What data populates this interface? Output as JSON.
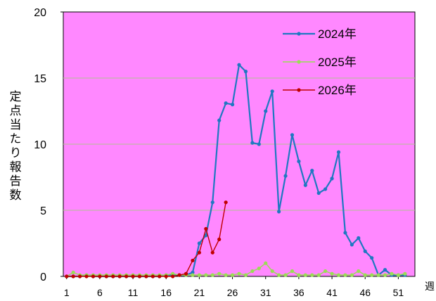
{
  "chart_data": {
    "type": "line",
    "y_label": "定点当たり報告数",
    "x_label": "週",
    "x": [
      1,
      2,
      3,
      4,
      5,
      6,
      7,
      8,
      9,
      10,
      11,
      12,
      13,
      14,
      15,
      16,
      17,
      18,
      19,
      20,
      21,
      22,
      23,
      24,
      25,
      26,
      27,
      28,
      29,
      30,
      31,
      32,
      33,
      34,
      35,
      36,
      37,
      38,
      39,
      40,
      41,
      42,
      43,
      44,
      45,
      46,
      47,
      48,
      49,
      50,
      51,
      52
    ],
    "series": [
      {
        "name": "2024年",
        "color": "#1f78c1",
        "values": [
          0,
          0,
          0,
          0.1,
          0,
          0,
          0,
          0,
          0,
          0,
          0,
          0,
          0,
          0,
          0,
          0.1,
          0.1,
          0.1,
          0.1,
          0.3,
          2.5,
          3.1,
          5.6,
          11.8,
          13.1,
          13.0,
          16.0,
          15.5,
          10.1,
          10.0,
          12.5,
          14.0,
          4.9,
          7.6,
          10.7,
          8.7,
          6.9,
          8.0,
          6.3,
          6.6,
          7.4,
          9.4,
          3.3,
          2.4,
          2.9,
          1.9,
          1.4,
          0.1,
          0.5,
          0.1,
          0.1,
          0.1
        ]
      },
      {
        "name": "2025年",
        "color": "#99dd55",
        "values": [
          0,
          0.3,
          0.1,
          0.1,
          0.1,
          0.1,
          0.1,
          0.1,
          0.1,
          0.1,
          0.1,
          0.1,
          0.1,
          0.1,
          0.1,
          0.1,
          0.2,
          0.1,
          0.1,
          0.1,
          0.1,
          0.1,
          0.1,
          0.2,
          0.1,
          0.1,
          0.2,
          0.1,
          0.4,
          0.6,
          1.0,
          0.4,
          0.1,
          0.1,
          0.4,
          0.1,
          0.1,
          0.1,
          0.1,
          0.4,
          0.2,
          0.1,
          0.1,
          0.1,
          0.4,
          0.1,
          0.1,
          0.1,
          0.1,
          0.2,
          0.1,
          0.2
        ]
      },
      {
        "name": "2026年",
        "color": "#c00000",
        "values": [
          0,
          0,
          0,
          0,
          0,
          0,
          0,
          0,
          0,
          0,
          0,
          0,
          0,
          0,
          0,
          0,
          0,
          0.1,
          0.2,
          1.2,
          1.8,
          3.6,
          1.8,
          2.8,
          5.6,
          null,
          null,
          null,
          null,
          null,
          null,
          null,
          null,
          null,
          null,
          null,
          null,
          null,
          null,
          null,
          null,
          null,
          null,
          null,
          null,
          null,
          null,
          null,
          null,
          null,
          null,
          null
        ]
      }
    ],
    "xlim": [
      0.5,
      53.5
    ],
    "xticks": [
      1,
      6,
      11,
      16,
      21,
      26,
      31,
      36,
      41,
      46,
      51
    ],
    "ylim": [
      0,
      20
    ],
    "yticks": [
      0,
      5,
      10,
      15,
      20
    ],
    "grid": true,
    "background": "#ff88ff",
    "legend": "upper right"
  }
}
